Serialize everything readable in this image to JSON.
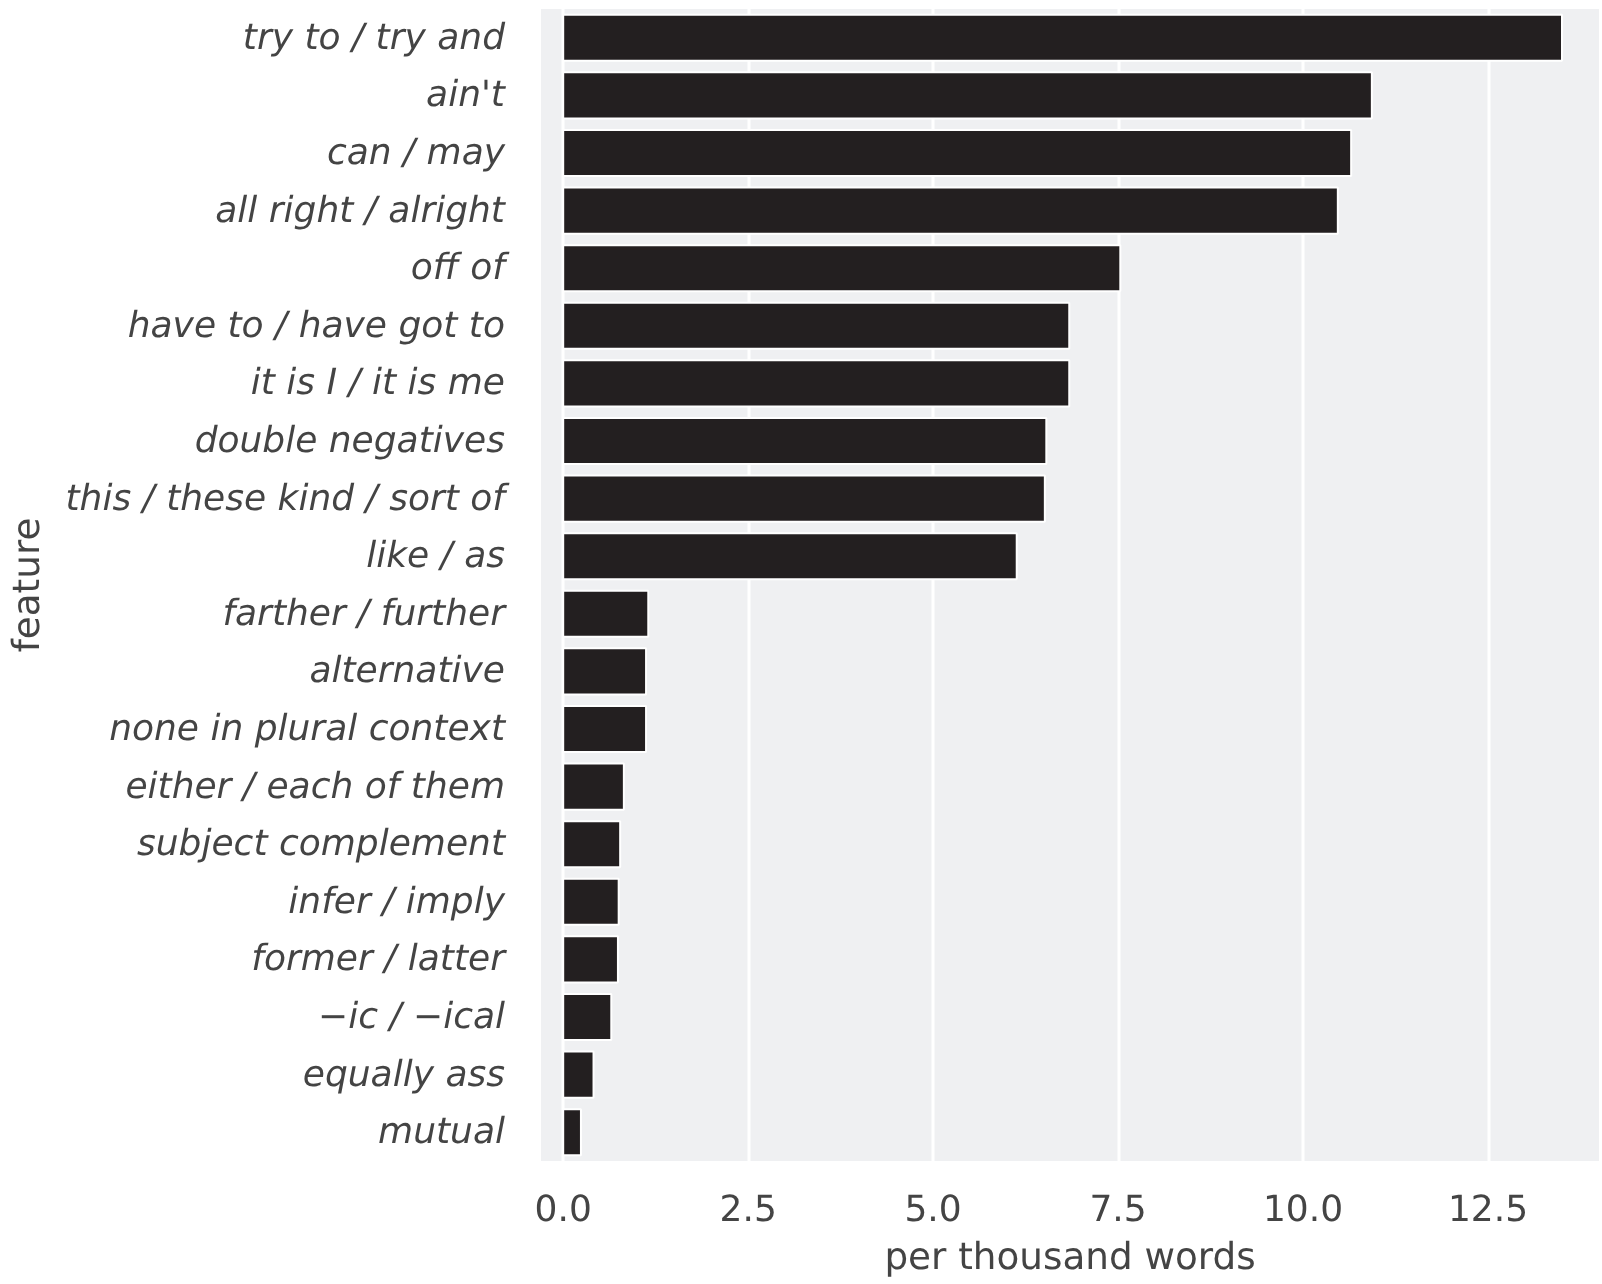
{
  "chart_data": {
    "type": "bar",
    "orientation": "horizontal",
    "xlabel": "per thousand words",
    "ylabel": "feature",
    "categories": [
      "try to / try and",
      "ain't",
      "can / may",
      "all right / alright",
      "off of",
      "have to / have got to",
      "it is I / it is me",
      "double negatives",
      "this / these kind / sort of",
      "like / as",
      "farther / further",
      "alternative",
      "none in plural context",
      "either / each of them",
      "subject complement",
      "infer / imply",
      "former / latter",
      "−ic / −ical",
      "equally ass",
      "mutual"
    ],
    "values": [
      13.5,
      10.93,
      10.65,
      10.47,
      7.53,
      6.84,
      6.84,
      6.53,
      6.51,
      6.13,
      1.15,
      1.12,
      1.12,
      0.82,
      0.77,
      0.75,
      0.74,
      0.65,
      0.41,
      0.24
    ],
    "color": "#231f20",
    "xlim": [
      -0.3,
      14.0
    ],
    "xticks": [
      {
        "value": 0,
        "label": "0.0"
      },
      {
        "value": 2.5,
        "label": "2.5"
      },
      {
        "value": 5,
        "label": "5.0"
      },
      {
        "value": 7.5,
        "label": "7.5"
      },
      {
        "value": 10,
        "label": "10.0"
      },
      {
        "value": 12.5,
        "label": "12.5"
      }
    ],
    "grid": "x"
  }
}
